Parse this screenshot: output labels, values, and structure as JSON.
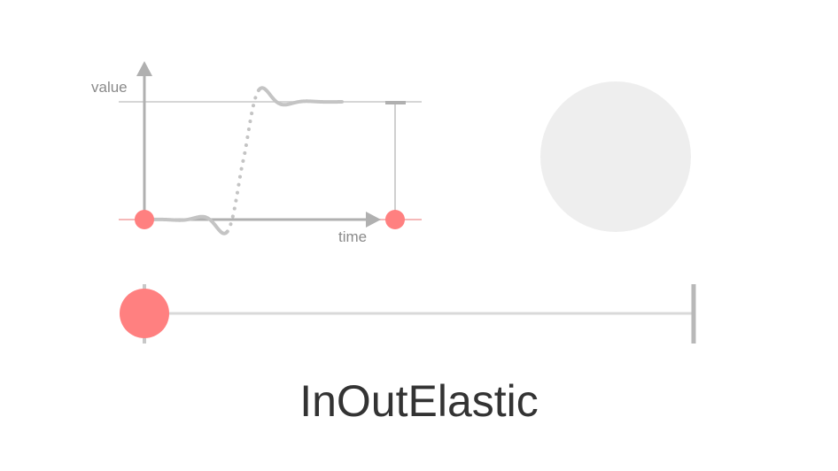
{
  "graph": {
    "value_label": "value",
    "time_label": "time",
    "curve_name": "InOutElastic"
  },
  "animation": {
    "progress": 0.0,
    "opacity_preview_progress": 0.0
  },
  "colors": {
    "accent": "#ff8080",
    "axis": "#b0b0b0",
    "guide": "#c8c8c8",
    "track": "#d9d9d9",
    "preview_circle": "#eeeeee",
    "title": "#333333"
  }
}
